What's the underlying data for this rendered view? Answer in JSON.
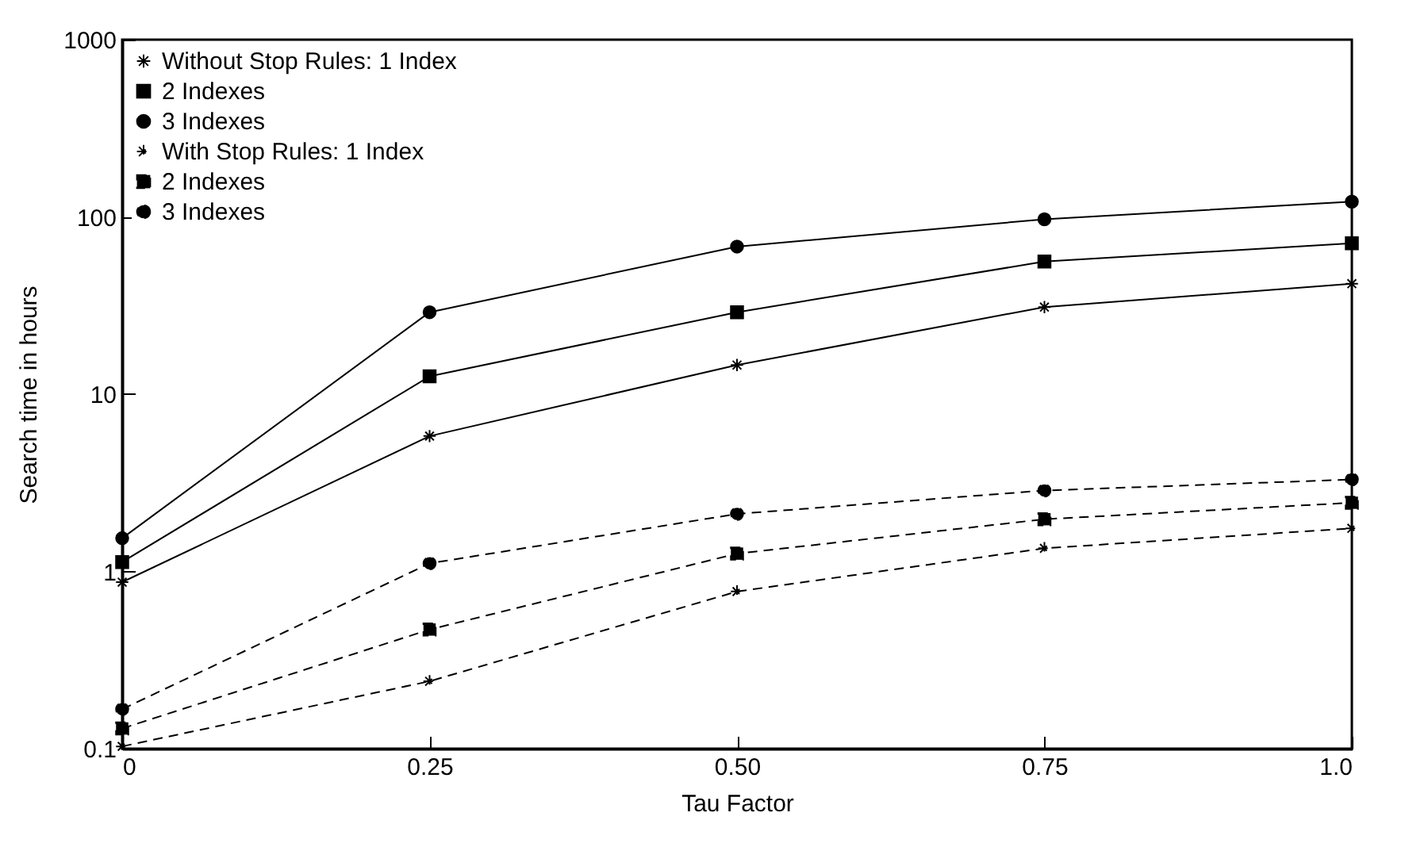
{
  "chart_data": {
    "type": "line",
    "xlabel": "Tau Factor",
    "ylabel": "Search time in hours",
    "x": [
      0,
      0.25,
      0.5,
      0.75,
      1.0
    ],
    "xlim": [
      0,
      1.0
    ],
    "xticks": [
      0,
      {
        "value": 0.25,
        "label": "0.25"
      },
      {
        "value": 0.5,
        "label": "0.50"
      },
      {
        "value": 0.75,
        "label": "0.75"
      },
      {
        "value": 1.0,
        "label": "1.0"
      }
    ],
    "ylim": [
      0.1,
      1000
    ],
    "yticks": [
      0.1,
      1,
      10,
      100,
      1000
    ],
    "log": true,
    "grid": false,
    "legend": "top left",
    "series": [
      {
        "name": "Without Stop Rules: 1 Index",
        "color": "#000000",
        "marker": "cross",
        "line_style": "solid",
        "values": [
          0.87,
          5.8,
          14.6,
          31,
          42
        ]
      },
      {
        "name": "2 Indexes",
        "color": "#000000",
        "marker": "square",
        "line_style": "solid",
        "values": [
          1.13,
          12.6,
          29,
          56,
          71
        ]
      },
      {
        "name": "3 Indexes",
        "color": "#000000",
        "marker": "circle",
        "line_style": "solid",
        "values": [
          1.54,
          29,
          68,
          97,
          122
        ]
      },
      {
        "name": "With Stop Rules: 1 Index",
        "color": "#000000",
        "marker": "cross",
        "line_style": "dashed",
        "values": [
          0.103,
          0.24,
          0.77,
          1.35,
          1.75
        ]
      },
      {
        "name": "2 Indexes",
        "color": "#000000",
        "marker": "square",
        "line_style": "dashed",
        "values": [
          0.13,
          0.47,
          1.26,
          1.97,
          2.44
        ]
      },
      {
        "name": "3 Indexes",
        "color": "#000000",
        "marker": "circle",
        "line_style": "dashed",
        "values": [
          0.167,
          1.11,
          2.11,
          2.86,
          3.3
        ]
      }
    ]
  }
}
